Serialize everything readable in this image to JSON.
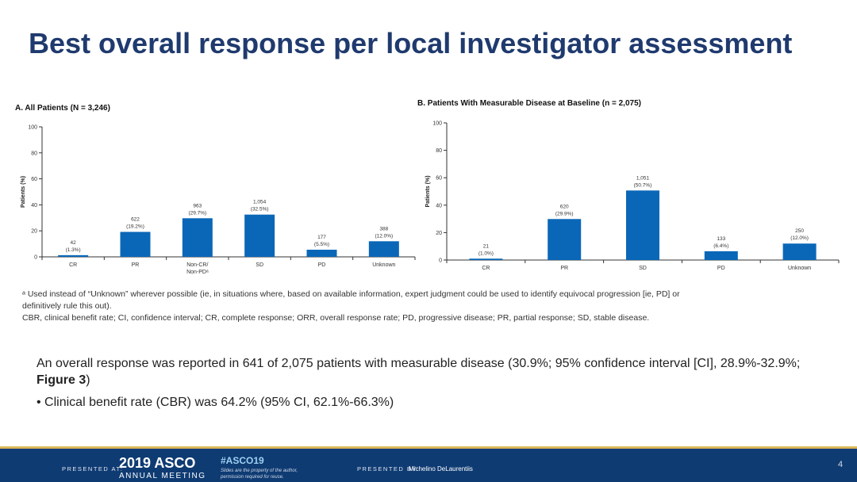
{
  "title": "Best overall response per local investigator assessment",
  "chart_data": [
    {
      "type": "bar",
      "title": "A. All Patients (N = 3,246)",
      "ylabel": "Patients (%)",
      "ylim": [
        0,
        100
      ],
      "yticks": [
        0,
        20,
        40,
        60,
        80,
        100
      ],
      "categories": [
        "CR",
        "PR",
        "Non-CR/ Non-PDᵃ",
        "SD",
        "PD",
        "Unknown"
      ],
      "values": [
        1.3,
        19.2,
        29.7,
        32.5,
        5.5,
        12.0
      ],
      "counts": [
        "42",
        "622",
        "963",
        "1,054",
        "177",
        "388"
      ],
      "percent_labels": [
        "(1.3%)",
        "(19.2%)",
        "(29.7%)",
        "(32.5%)",
        "(5.5%)",
        "(12.0%)"
      ],
      "bar_color": "#0a67b8"
    },
    {
      "type": "bar",
      "title": "B. Patients With Measurable Disease at Baseline (n = 2,075)",
      "ylabel": "Patients (%)",
      "ylim": [
        0,
        100
      ],
      "yticks": [
        0,
        20,
        40,
        60,
        80,
        100
      ],
      "categories": [
        "CR",
        "PR",
        "SD",
        "PD",
        "Unknown"
      ],
      "values": [
        1.0,
        29.9,
        50.7,
        6.4,
        12.0
      ],
      "counts": [
        "21",
        "620",
        "1,051",
        "133",
        "250"
      ],
      "percent_labels": [
        "(1.0%)",
        "(29.9%)",
        "(50.7%)",
        "(6.4%)",
        "(12.0%)"
      ],
      "bar_color": "#0a67b8"
    }
  ],
  "footnotes": {
    "line1": "ᵃ Used instead of “Unknown” wherever possible (ie, in situations where, based on available information, expert judgment could be used to identify equivocal progression [ie, PD] or definitively rule this out).",
    "line2": "CBR, clinical benefit rate; CI, confidence interval; CR, complete response; ORR, overall response rate; PD, progressive disease; PR, partial response; SD, stable disease."
  },
  "summary": {
    "text": "An overall response was reported in 641 of 2,075 patients with measurable disease (30.9%; 95% confidence interval [CI], 28.9%-32.9%;",
    "figure_ref": "Figure 3",
    "close_paren": ")",
    "bullet": "•  Clinical benefit rate (CBR) was 64.2% (95% CI, 62.1%-66.3%)"
  },
  "footer": {
    "presented_at": "PRESENTED AT:",
    "year": "2019 ASCO",
    "meeting": "ANNUAL MEETING",
    "hashtag": "#ASCO19",
    "rights": "Slides are the property of the author, permission required for reuse.",
    "presented_by": "PRESENTED BY:",
    "presenter": "Michelino DeLaurentiis",
    "page": "4"
  }
}
